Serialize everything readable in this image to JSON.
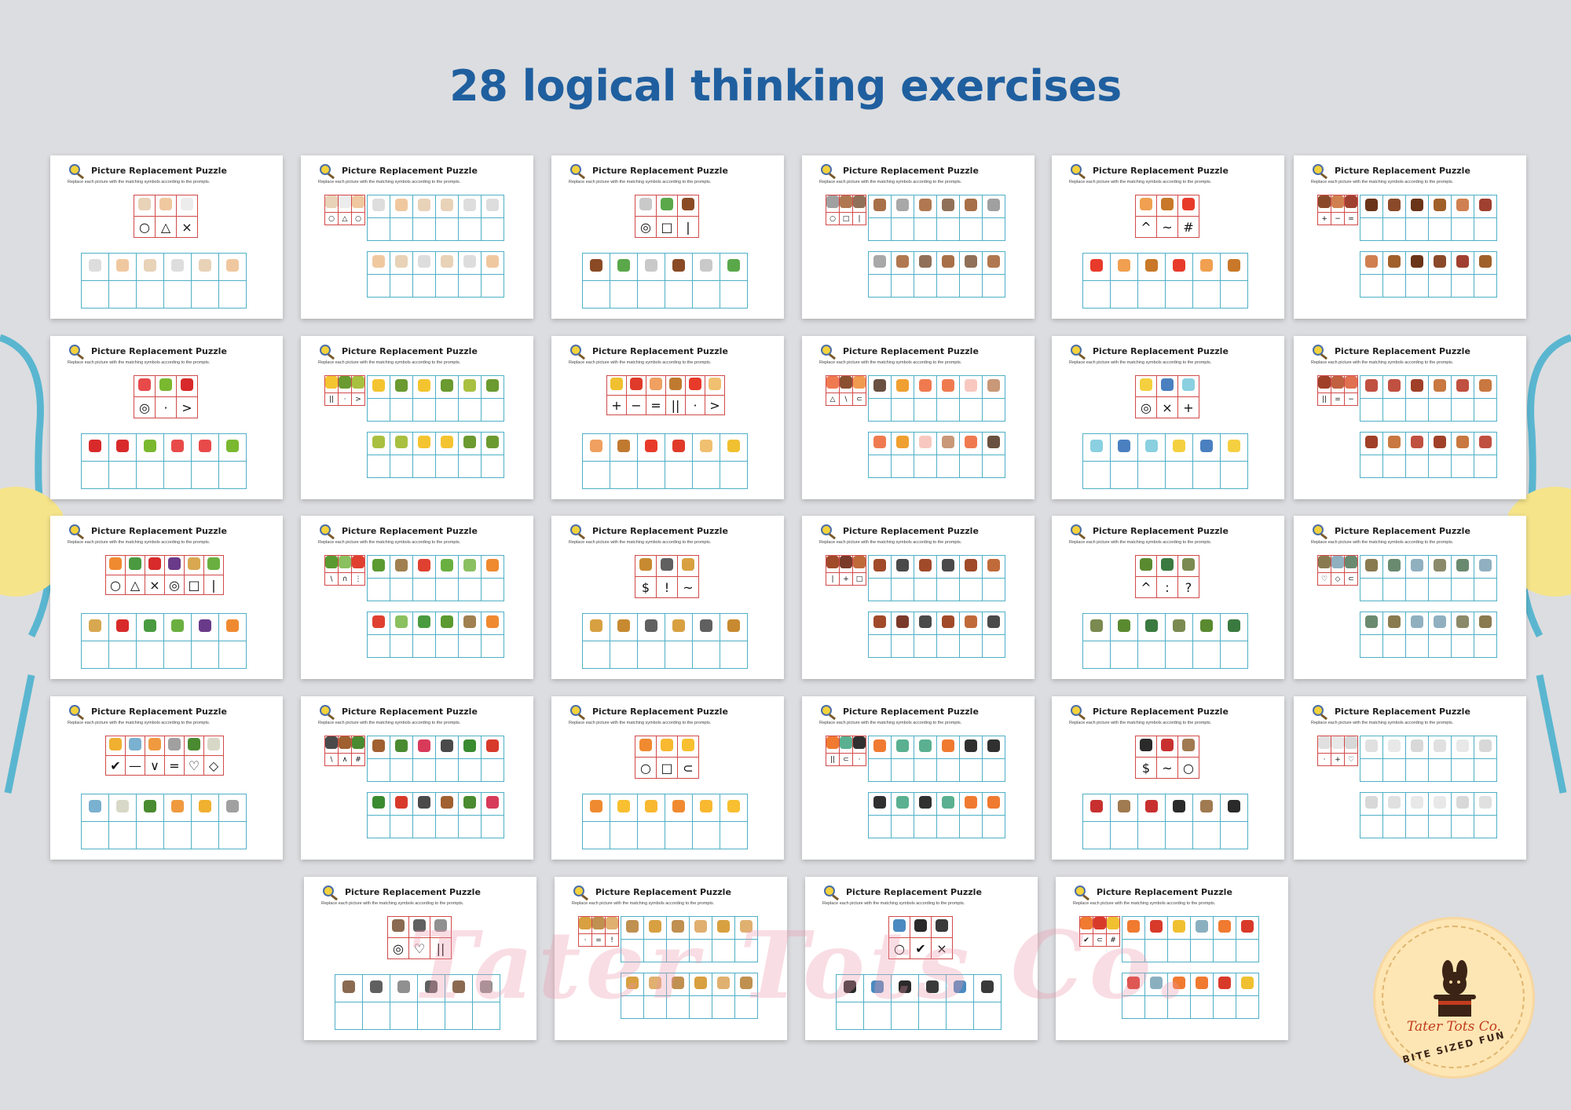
{
  "heading": "28 logical thinking exercises",
  "card_title": "Picture Replacement Puzzle",
  "card_instructions": "Replace each picture with the matching symbols according to the prompts.",
  "watermark_text": "Tater Tots Co.",
  "logo": {
    "name": "Tater Tots Co.",
    "tagline": "BITE SIZED FUN"
  },
  "colors": {
    "background": "#dcdde0",
    "heading": "#1f5f9f",
    "key_table_border": "#d24a4a",
    "answer_table_border": "#4fb0c6"
  },
  "puzzles": [
    {
      "layout": "top",
      "pics": [
        "#e8d2b8",
        "#f0c8a0",
        "#ececec"
      ],
      "symbols": [
        "○",
        "△",
        "×"
      ],
      "answers": [
        "#dddddd",
        "#f0c8a0",
        "#e8d2b8",
        "#dddddd",
        "#e8d2b8",
        "#f0c8a0"
      ]
    },
    {
      "layout": "side",
      "pics": [
        "#e8d2b8",
        "#ececec",
        "#f0c8a0"
      ],
      "symbols": [
        "○",
        "△",
        "○"
      ],
      "row1": [
        "#dddddd",
        "#f0c8a0",
        "#e8d2b8",
        "#e8d2b8",
        "#dddddd",
        "#dddddd"
      ],
      "row2": [
        "#f0c8a0",
        "#e8d2b8",
        "#dddddd",
        "#e8d2b8",
        "#dddddd",
        "#f0c8a0"
      ]
    },
    {
      "layout": "top",
      "pics": [
        "#c9c9c9",
        "#5aa84a",
        "#8a4a24"
      ],
      "symbols": [
        "◎",
        "□",
        "|"
      ],
      "answers": [
        "#8a4a24",
        "#5aa84a",
        "#c9c9c9",
        "#8a4a24",
        "#c9c9c9",
        "#5aa84a"
      ]
    },
    {
      "layout": "side",
      "pics": [
        "#a0a0a0",
        "#b07850",
        "#907058"
      ],
      "symbols": [
        "○",
        "□",
        "|"
      ],
      "row1": [
        "#a87048",
        "#a8a8a8",
        "#b07850",
        "#907058",
        "#a87048",
        "#a0a0a0"
      ],
      "row2": [
        "#a8a8a8",
        "#b07850",
        "#907058",
        "#a87048",
        "#907058",
        "#b07850"
      ]
    },
    {
      "layout": "top",
      "pics": [
        "#f0a050",
        "#c87828",
        "#e83a2a"
      ],
      "symbols": [
        "^",
        "~",
        "#"
      ],
      "answers": [
        "#e83a2a",
        "#f0a050",
        "#c87828",
        "#e83a2a",
        "#f0a050",
        "#c87828"
      ]
    },
    {
      "layout": "side",
      "pics": [
        "#8a4a2a",
        "#d08050",
        "#a04030"
      ],
      "symbols": [
        "+",
        "−",
        "="
      ],
      "row1": [
        "#6a3418",
        "#8a4a2a",
        "#6a3418",
        "#a0602a",
        "#d08050",
        "#a04030"
      ],
      "row2": [
        "#d08050",
        "#a0602a",
        "#6a3418",
        "#8a4a2a",
        "#a04030",
        "#a0602a"
      ]
    },
    {
      "layout": "top",
      "pics": [
        "#e84a4a",
        "#7ab830",
        "#d82a2a"
      ],
      "symbols": [
        "◎",
        "·",
        ">"
      ],
      "answers": [
        "#d82a2a",
        "#d82a2a",
        "#7ab830",
        "#e84a4a",
        "#e84a4a",
        "#7ab830"
      ]
    },
    {
      "layout": "side",
      "pics": [
        "#f4c430",
        "#6a9a30",
        "#a8c040"
      ],
      "symbols": [
        "||",
        "·",
        ">"
      ],
      "row1": [
        "#f4c430",
        "#6a9a30",
        "#f4c430",
        "#6a9a30",
        "#a8c040",
        "#6a9a30"
      ],
      "row2": [
        "#a8c040",
        "#a8c040",
        "#f4c430",
        "#f4c430",
        "#6a9a30",
        "#6a9a30"
      ]
    },
    {
      "layout": "top",
      "pics": [
        "#f0c030",
        "#e03a2a",
        "#f0a060",
        "#c07a30",
        "#e83a2a",
        "#f0c070"
      ],
      "symbols": [
        "+",
        "−",
        "=",
        "||",
        "·",
        ">"
      ],
      "answers": [
        "#f0a060",
        "#c07a30",
        "#e83a2a",
        "#e03a2a",
        "#f0c070",
        "#f0c030"
      ]
    },
    {
      "layout": "side",
      "pics": [
        "#f07a50",
        "#8a5030",
        "#f09a50"
      ],
      "symbols": [
        "△",
        "\\",
        "⊂"
      ],
      "row1": [
        "#6a5040",
        "#f0a030",
        "#f07a50",
        "#f07a50",
        "#f8c8c0",
        "#c89878"
      ],
      "row2": [
        "#f07a50",
        "#f0a030",
        "#f8c8c0",
        "#c89878",
        "#f07a50",
        "#6a5040"
      ]
    },
    {
      "layout": "top",
      "pics": [
        "#f4d040",
        "#4a80c0",
        "#8ad0e0"
      ],
      "symbols": [
        "◎",
        "×",
        "+"
      ],
      "answers": [
        "#8ad0e0",
        "#4a80c0",
        "#8ad0e0",
        "#f4d040",
        "#4a80c0",
        "#f4d040"
      ]
    },
    {
      "layout": "side",
      "pics": [
        "#a04028",
        "#c06040",
        "#e07050"
      ],
      "symbols": [
        "||",
        "=",
        "−"
      ],
      "row1": [
        "#c05040",
        "#c05040",
        "#a04028",
        "#c87840",
        "#c05040",
        "#c87840"
      ],
      "row2": [
        "#a04028",
        "#c87840",
        "#c05040",
        "#a04028",
        "#c87840",
        "#c05040"
      ]
    },
    {
      "layout": "top",
      "pics": [
        "#f08a30",
        "#4a9a40",
        "#d82a2a",
        "#6a3a8a",
        "#d8a850",
        "#6ab040"
      ],
      "symbols": [
        "○",
        "△",
        "×",
        "◎",
        "□",
        "|"
      ],
      "answers": [
        "#d8a850",
        "#d82a2a",
        "#4a9a40",
        "#6ab040",
        "#6a3a8a",
        "#f08a30"
      ]
    },
    {
      "layout": "side",
      "pics": [
        "#5a9a30",
        "#8ac060",
        "#e04030"
      ],
      "symbols": [
        "\\",
        "∩",
        "⋮"
      ],
      "row1": [
        "#5a9a30",
        "#a08050",
        "#e04030",
        "#6ab040",
        "#8ac060",
        "#f08a30"
      ],
      "row2": [
        "#e04030",
        "#8ac060",
        "#4a9a40",
        "#5a9a30",
        "#a08050",
        "#f08a30"
      ]
    },
    {
      "layout": "top",
      "pics": [
        "#c88a30",
        "#606060",
        "#d8a040"
      ],
      "symbols": [
        "$",
        "!",
        "~"
      ],
      "answers": [
        "#d8a040",
        "#c88a30",
        "#606060",
        "#d8a040",
        "#606060",
        "#c88a30"
      ]
    },
    {
      "layout": "side",
      "pics": [
        "#a04a2a",
        "#7a3a2a",
        "#c06a3a"
      ],
      "symbols": [
        "|",
        "+",
        "□"
      ],
      "row1": [
        "#a04a2a",
        "#4a4a4a",
        "#a04a2a",
        "#4a4a4a",
        "#a04a2a",
        "#c06a3a"
      ],
      "row2": [
        "#a04a2a",
        "#7a3a2a",
        "#4a4a4a",
        "#a04a2a",
        "#c06a3a",
        "#4a4a4a"
      ]
    },
    {
      "layout": "top",
      "pics": [
        "#5a8a30",
        "#3a7a40",
        "#7a8a50"
      ],
      "symbols": [
        "^",
        ":",
        "?"
      ],
      "answers": [
        "#7a8a50",
        "#5a8a30",
        "#3a7a40",
        "#7a8a50",
        "#5a8a30",
        "#3a7a40"
      ]
    },
    {
      "layout": "side",
      "pics": [
        "#8a7a50",
        "#90b0c0",
        "#6a8a70"
      ],
      "symbols": [
        "♡",
        "◇",
        "⊂"
      ],
      "row1": [
        "#8a7a50",
        "#6a8a70",
        "#90b0c0",
        "#8a8a6a",
        "#6a8a70",
        "#90b0c0"
      ],
      "row2": [
        "#6a8a70",
        "#8a7a50",
        "#90b0c0",
        "#90b0c0",
        "#8a8a6a",
        "#8a7a50"
      ]
    },
    {
      "layout": "top",
      "pics": [
        "#f0b030",
        "#7ab0d0",
        "#f09a40",
        "#a0a0a0",
        "#4a8a30",
        "#d8d8c8"
      ],
      "symbols": [
        "✔",
        "—",
        "∨",
        "=",
        "♡",
        "◇"
      ],
      "answers": [
        "#7ab0d0",
        "#d8d8c8",
        "#4a8a30",
        "#f09a40",
        "#f0b030",
        "#a0a0a0"
      ]
    },
    {
      "layout": "side",
      "pics": [
        "#4a4a4a",
        "#a06030",
        "#4a8a30"
      ],
      "symbols": [
        "\\",
        "∧",
        "#"
      ],
      "row1": [
        "#a06030",
        "#4a8a30",
        "#d83a5a",
        "#4a4a4a",
        "#3a8a30",
        "#d83a2a"
      ],
      "row2": [
        "#3a8a30",
        "#d83a2a",
        "#4a4a4a",
        "#a06030",
        "#4a8a30",
        "#d83a5a"
      ]
    },
    {
      "layout": "top",
      "pics": [
        "#f08a30",
        "#f8b830",
        "#f8c030"
      ],
      "symbols": [
        "○",
        "□",
        "⊂"
      ],
      "answers": [
        "#f08a30",
        "#f8c030",
        "#f8b830",
        "#f08a30",
        "#f8b830",
        "#f8c030"
      ]
    },
    {
      "layout": "side",
      "pics": [
        "#f07a30",
        "#5ab090",
        "#303030"
      ],
      "symbols": [
        "||",
        "⊂",
        "·"
      ],
      "row1": [
        "#f07a30",
        "#5ab090",
        "#5ab090",
        "#f07a30",
        "#303030",
        "#303030"
      ],
      "row2": [
        "#303030",
        "#5ab090",
        "#303030",
        "#5ab090",
        "#f07a30",
        "#f07a30"
      ]
    },
    {
      "layout": "top",
      "pics": [
        "#2a2a2a",
        "#c83030",
        "#a07a50"
      ],
      "symbols": [
        "$",
        "~",
        "○"
      ],
      "answers": [
        "#c83030",
        "#a07a50",
        "#c83030",
        "#2a2a2a",
        "#a07a50",
        "#2a2a2a"
      ]
    },
    {
      "layout": "side",
      "pics": [
        "#e0e0e0",
        "#e8e8e8",
        "#d8d8d8"
      ],
      "symbols": [
        "·",
        "+",
        "♡"
      ],
      "row1": [
        "#e0e0e0",
        "#e8e8e8",
        "#d8d8d8",
        "#e0e0e0",
        "#e8e8e8",
        "#d8d8d8"
      ],
      "row2": [
        "#d8d8d8",
        "#e0e0e0",
        "#e8e8e8",
        "#e8e8e8",
        "#d8d8d8",
        "#e0e0e0"
      ]
    },
    {
      "layout": "top",
      "pics": [
        "#8a6a50",
        "#606060",
        "#909090"
      ],
      "symbols": [
        "◎",
        "♡",
        "||"
      ],
      "answers": [
        "#8a6a50",
        "#606060",
        "#909090",
        "#606060",
        "#8a6a50",
        "#909090"
      ]
    },
    {
      "layout": "side",
      "pics": [
        "#d8a040",
        "#c09050",
        "#e0b070"
      ],
      "symbols": [
        "·",
        "=",
        "!"
      ],
      "row1": [
        "#c09050",
        "#d8a040",
        "#c09050",
        "#e0b070",
        "#d8a040",
        "#e0b070"
      ],
      "row2": [
        "#d8a040",
        "#e0b070",
        "#c09050",
        "#d8a040",
        "#e0b070",
        "#c09050"
      ]
    },
    {
      "layout": "top",
      "pics": [
        "#4a8ac0",
        "#2a2a2a",
        "#3a3a3a"
      ],
      "symbols": [
        "○",
        "✔",
        "×"
      ],
      "answers": [
        "#2a2a2a",
        "#4a8ac0",
        "#2a2a2a",
        "#3a3a3a",
        "#4a8ac0",
        "#3a3a3a"
      ]
    },
    {
      "layout": "side",
      "pics": [
        "#f07a30",
        "#d83a2a",
        "#f0c030"
      ],
      "symbols": [
        "✔",
        "⊂",
        "#"
      ],
      "row1": [
        "#f07a30",
        "#d83a2a",
        "#f0c030",
        "#8ab0c0",
        "#f07a30",
        "#d83a2a"
      ],
      "row2": [
        "#d83a2a",
        "#8ab0c0",
        "#f07a30",
        "#f07a30",
        "#d83a2a",
        "#f0c030"
      ]
    }
  ]
}
